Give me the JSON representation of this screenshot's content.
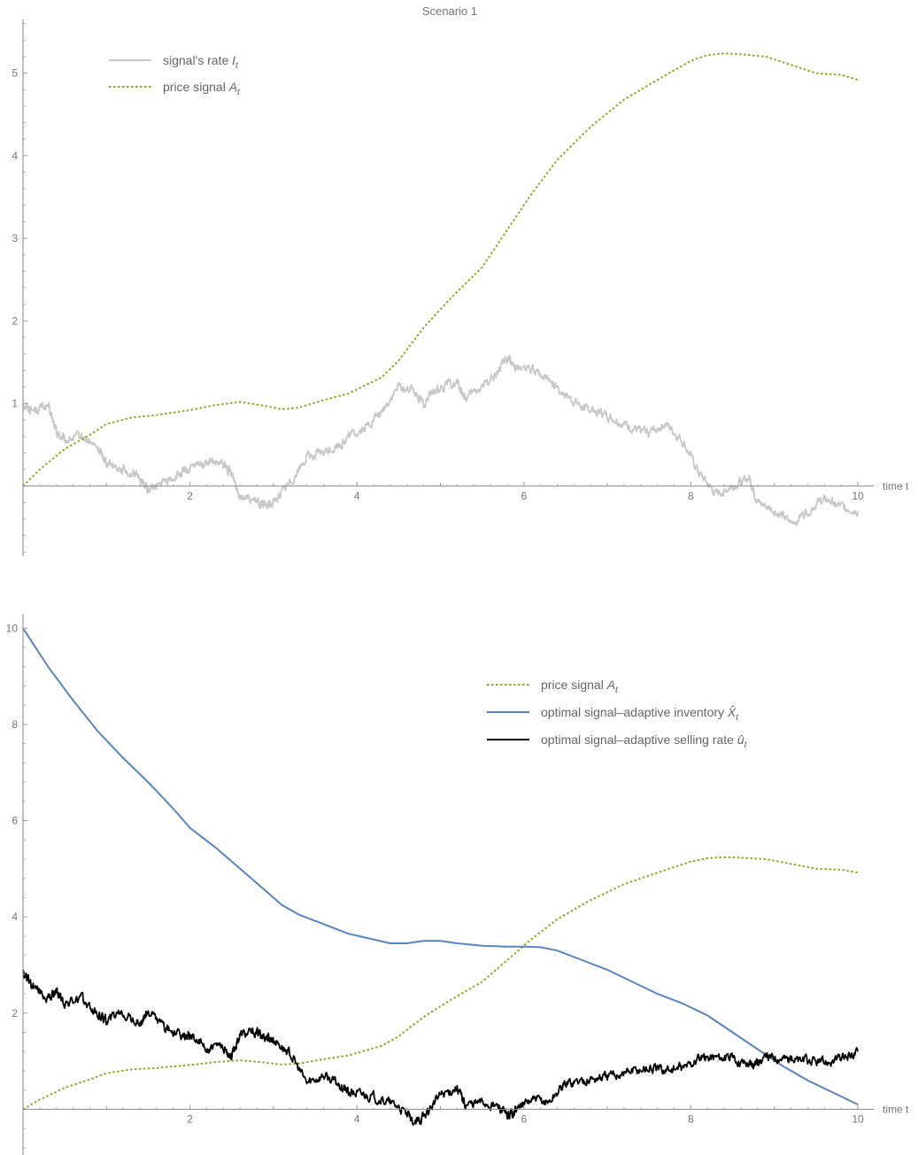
{
  "chart_data": [
    {
      "type": "line",
      "title": "Scenario 1",
      "xlabel": "time t",
      "ylabel": "",
      "xlim": [
        0,
        10
      ],
      "ylim": [
        -0.85,
        5.65
      ],
      "x_ticks": [
        2,
        4,
        6,
        8,
        10
      ],
      "y_ticks": [
        1,
        2,
        3,
        4,
        5
      ],
      "legend_position": "top-left",
      "series": [
        {
          "name": "signal's rate I_t",
          "legend_main": "signal's rate ",
          "legend_symbol": "I",
          "legend_sub": "t",
          "color": "#c8c8c8",
          "style": "solid",
          "noisy": true,
          "x": [
            0,
            0.1,
            0.3,
            0.4,
            0.5,
            0.7,
            0.9,
            1.0,
            1.2,
            1.4,
            1.5,
            1.7,
            1.9,
            2.0,
            2.2,
            2.4,
            2.5,
            2.6,
            2.8,
            2.9,
            3.0,
            3.2,
            3.4,
            3.6,
            3.8,
            3.9,
            4.1,
            4.3,
            4.5,
            4.7,
            4.8,
            5.0,
            5.2,
            5.3,
            5.5,
            5.7,
            5.8,
            5.9,
            6.1,
            6.3,
            6.5,
            6.7,
            6.9,
            7.1,
            7.3,
            7.5,
            7.7,
            7.9,
            8.1,
            8.3,
            8.5,
            8.7,
            8.8,
            9.0,
            9.2,
            9.4,
            9.6,
            9.8,
            10.0
          ],
          "y": [
            1.0,
            0.92,
            0.97,
            0.65,
            0.55,
            0.6,
            0.45,
            0.3,
            0.2,
            0.1,
            -0.05,
            0.05,
            0.15,
            0.2,
            0.3,
            0.25,
            0.15,
            -0.1,
            -0.2,
            -0.25,
            -0.2,
            0.05,
            0.35,
            0.4,
            0.5,
            0.6,
            0.7,
            0.9,
            1.2,
            1.15,
            1.0,
            1.2,
            1.25,
            1.05,
            1.2,
            1.4,
            1.55,
            1.45,
            1.4,
            1.3,
            1.1,
            0.95,
            0.9,
            0.8,
            0.7,
            0.65,
            0.75,
            0.55,
            0.15,
            -0.1,
            0.0,
            0.1,
            -0.2,
            -0.3,
            -0.45,
            -0.3,
            -0.15,
            -0.25,
            -0.3
          ]
        },
        {
          "name": "price signal A_t",
          "legend_main": "price signal ",
          "legend_symbol": "A",
          "legend_sub": "t",
          "color": "#8eaa2a",
          "style": "dotted",
          "noisy": false,
          "x": [
            0,
            0.2,
            0.5,
            0.8,
            1.0,
            1.3,
            1.6,
            2.0,
            2.3,
            2.6,
            2.9,
            3.1,
            3.3,
            3.6,
            3.9,
            4.1,
            4.3,
            4.5,
            4.8,
            5.1,
            5.5,
            5.8,
            6.1,
            6.4,
            6.8,
            7.2,
            7.6,
            8.0,
            8.2,
            8.4,
            8.6,
            8.9,
            9.2,
            9.5,
            9.8,
            10.0
          ],
          "y": [
            0.0,
            0.2,
            0.45,
            0.62,
            0.75,
            0.83,
            0.86,
            0.92,
            0.98,
            1.02,
            0.97,
            0.93,
            0.95,
            1.04,
            1.12,
            1.22,
            1.32,
            1.52,
            1.92,
            2.25,
            2.65,
            3.1,
            3.55,
            3.95,
            4.35,
            4.68,
            4.92,
            5.15,
            5.22,
            5.24,
            5.23,
            5.2,
            5.1,
            5.0,
            4.98,
            4.92
          ]
        }
      ]
    },
    {
      "type": "line",
      "title": "",
      "xlabel": "time t",
      "ylabel": "",
      "xlim": [
        0,
        10
      ],
      "ylim": [
        -0.95,
        10.3
      ],
      "x_ticks": [
        2,
        4,
        6,
        8,
        10
      ],
      "y_ticks": [
        2,
        4,
        6,
        8,
        10
      ],
      "legend_position": "top-right",
      "series": [
        {
          "name": "price signal A_t",
          "legend_main": "price signal ",
          "legend_symbol": "A",
          "legend_sub": "t",
          "color": "#8eaa2a",
          "style": "dotted",
          "noisy": false,
          "x": [
            0,
            0.2,
            0.5,
            0.8,
            1.0,
            1.3,
            1.6,
            2.0,
            2.3,
            2.6,
            2.9,
            3.1,
            3.3,
            3.6,
            3.9,
            4.1,
            4.3,
            4.5,
            4.8,
            5.1,
            5.5,
            5.8,
            6.1,
            6.4,
            6.8,
            7.2,
            7.6,
            8.0,
            8.2,
            8.4,
            8.6,
            8.9,
            9.2,
            9.5,
            9.8,
            10.0
          ],
          "y": [
            0.0,
            0.2,
            0.45,
            0.62,
            0.75,
            0.83,
            0.86,
            0.92,
            0.98,
            1.02,
            0.97,
            0.93,
            0.95,
            1.04,
            1.12,
            1.22,
            1.32,
            1.52,
            1.92,
            2.25,
            2.65,
            3.1,
            3.55,
            3.95,
            4.35,
            4.68,
            4.92,
            5.15,
            5.22,
            5.24,
            5.23,
            5.2,
            5.1,
            5.0,
            4.98,
            4.92
          ]
        },
        {
          "name": "optimal signal-adaptive inventory X̂_t",
          "legend_main": "optimal signal–adaptive inventory ",
          "legend_symbol": "X̂",
          "legend_sub": "t",
          "color": "#5b84be",
          "style": "solid",
          "noisy": false,
          "x": [
            0,
            0.3,
            0.6,
            0.9,
            1.2,
            1.5,
            1.8,
            2.0,
            2.3,
            2.6,
            2.9,
            3.1,
            3.3,
            3.6,
            3.9,
            4.1,
            4.4,
            4.6,
            4.8,
            5.0,
            5.2,
            5.5,
            5.8,
            6.0,
            6.2,
            6.4,
            6.7,
            7.0,
            7.3,
            7.6,
            7.9,
            8.2,
            8.5,
            8.8,
            9.1,
            9.4,
            9.7,
            10.0
          ],
          "y": [
            10.0,
            9.2,
            8.5,
            7.85,
            7.3,
            6.8,
            6.25,
            5.85,
            5.45,
            5.0,
            4.55,
            4.25,
            4.05,
            3.85,
            3.65,
            3.57,
            3.45,
            3.45,
            3.5,
            3.5,
            3.45,
            3.4,
            3.38,
            3.38,
            3.37,
            3.3,
            3.1,
            2.9,
            2.65,
            2.4,
            2.2,
            1.95,
            1.6,
            1.25,
            0.9,
            0.6,
            0.35,
            0.1
          ]
        },
        {
          "name": "optimal signal-adaptive selling rate û_t",
          "legend_main": "optimal signal–adaptive selling rate ",
          "legend_symbol": "û",
          "legend_sub": "t",
          "color": "#000000",
          "style": "solid",
          "noisy": true,
          "x": [
            0,
            0.1,
            0.3,
            0.4,
            0.5,
            0.7,
            0.9,
            1.0,
            1.2,
            1.4,
            1.5,
            1.7,
            1.9,
            2.0,
            2.2,
            2.4,
            2.5,
            2.6,
            2.8,
            2.9,
            3.0,
            3.2,
            3.4,
            3.6,
            3.8,
            3.9,
            4.1,
            4.3,
            4.5,
            4.7,
            4.8,
            5.0,
            5.2,
            5.3,
            5.5,
            5.7,
            5.8,
            5.9,
            6.1,
            6.3,
            6.5,
            6.7,
            6.9,
            7.1,
            7.3,
            7.5,
            7.7,
            7.9,
            8.1,
            8.3,
            8.5,
            8.7,
            8.8,
            9.0,
            9.2,
            9.4,
            9.6,
            9.8,
            10.0
          ],
          "y": [
            2.9,
            2.6,
            2.3,
            2.45,
            2.2,
            2.3,
            1.95,
            1.85,
            2.0,
            1.75,
            2.05,
            1.7,
            1.5,
            1.55,
            1.25,
            1.3,
            1.1,
            1.55,
            1.6,
            1.5,
            1.45,
            1.15,
            0.55,
            0.7,
            0.5,
            0.35,
            0.3,
            0.2,
            0.05,
            -0.3,
            -0.15,
            0.3,
            0.45,
            0.1,
            0.15,
            0.05,
            -0.15,
            0.0,
            0.2,
            0.15,
            0.55,
            0.6,
            0.65,
            0.72,
            0.8,
            0.85,
            0.82,
            0.85,
            1.05,
            1.1,
            1.05,
            0.95,
            1.0,
            1.1,
            1.05,
            1.0,
            0.97,
            1.05,
            1.2
          ]
        }
      ]
    }
  ]
}
